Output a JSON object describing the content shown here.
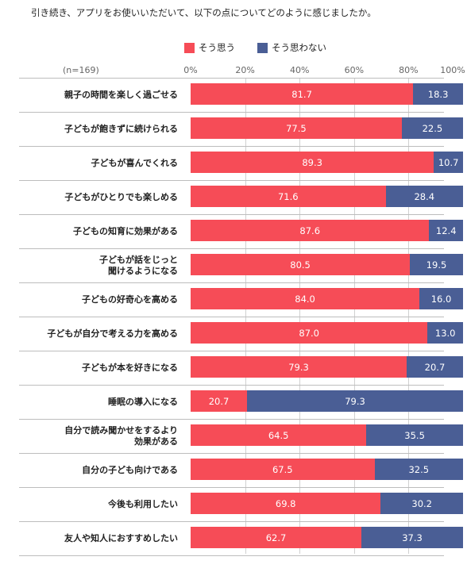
{
  "chart_data": {
    "type": "bar",
    "orientation": "horizontal",
    "stacked": true,
    "title": "引き続き、アプリをお使いいただいて、以下の点についてどのように感じましたか。",
    "sample_size": "(n=169)",
    "x_ticks": [
      "0%",
      "20%",
      "40%",
      "60%",
      "80%",
      "100%"
    ],
    "xlim": [
      0,
      100
    ],
    "legend_position": "top",
    "categories": [
      "親子の時間を楽しく過ごせる",
      "子どもが飽きずに続けられる",
      "子どもが喜んでくれる",
      "子どもがひとりでも楽しめる",
      "子どもの知育に効果がある",
      "子どもが話をじっと\n聞けるようになる",
      "子どもの好奇心を高める",
      "子どもが自分で考える力を高める",
      "子どもが本を好きになる",
      "睡眠の導入になる",
      "自分で読み聞かせをするより\n効果がある",
      "自分の子ども向けである",
      "今後も利用したい",
      "友人や知人におすすめしたい"
    ],
    "series": [
      {
        "name": "そう思う",
        "color": "#f64c57",
        "values": [
          "81.7",
          "77.5",
          "89.3",
          "71.6",
          "87.6",
          "80.5",
          "84.0",
          "87.0",
          "79.3",
          "20.7",
          "64.5",
          "67.5",
          "69.8",
          "62.7"
        ]
      },
      {
        "name": "そう思わない",
        "color": "#4a5e95",
        "values": [
          "18.3",
          "22.5",
          "10.7",
          "28.4",
          "12.4",
          "19.5",
          "16.0",
          "13.0",
          "20.7",
          "79.3",
          "35.5",
          "32.5",
          "30.2",
          "37.3"
        ]
      }
    ]
  }
}
